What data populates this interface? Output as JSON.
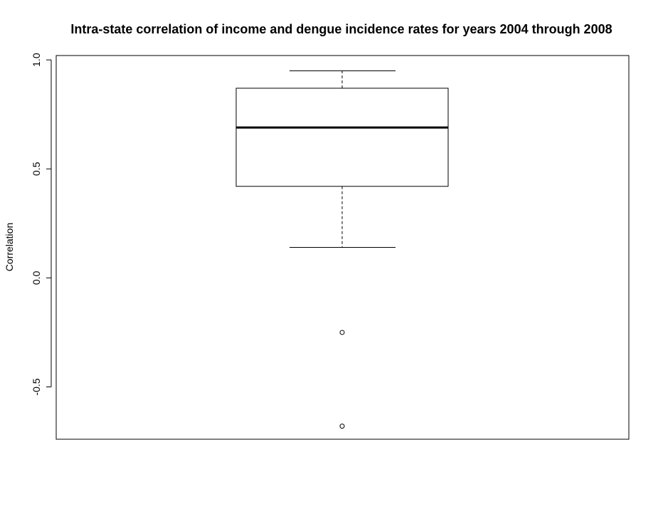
{
  "chart_data": {
    "type": "boxplot",
    "title": "Intra-state correlation of income and dengue incidence rates for years 2004 through 2008",
    "xlabel": "",
    "ylabel": "Correlation",
    "ylim": [
      -0.74,
      1.02
    ],
    "yticks": [
      {
        "value": 1.0,
        "label": "1.0"
      },
      {
        "value": 0.5,
        "label": "0.5"
      },
      {
        "value": 0.0,
        "label": "0.0"
      },
      {
        "value": -0.5,
        "label": "-0.5"
      }
    ],
    "grid": false,
    "box": {
      "whisker_low": 0.14,
      "q1": 0.42,
      "median": 0.69,
      "q3": 0.87,
      "whisker_high": 0.95,
      "outliers": [
        -0.25,
        -0.68
      ]
    },
    "colors": {
      "stroke": "#000000",
      "fill": "#ffffff"
    }
  }
}
